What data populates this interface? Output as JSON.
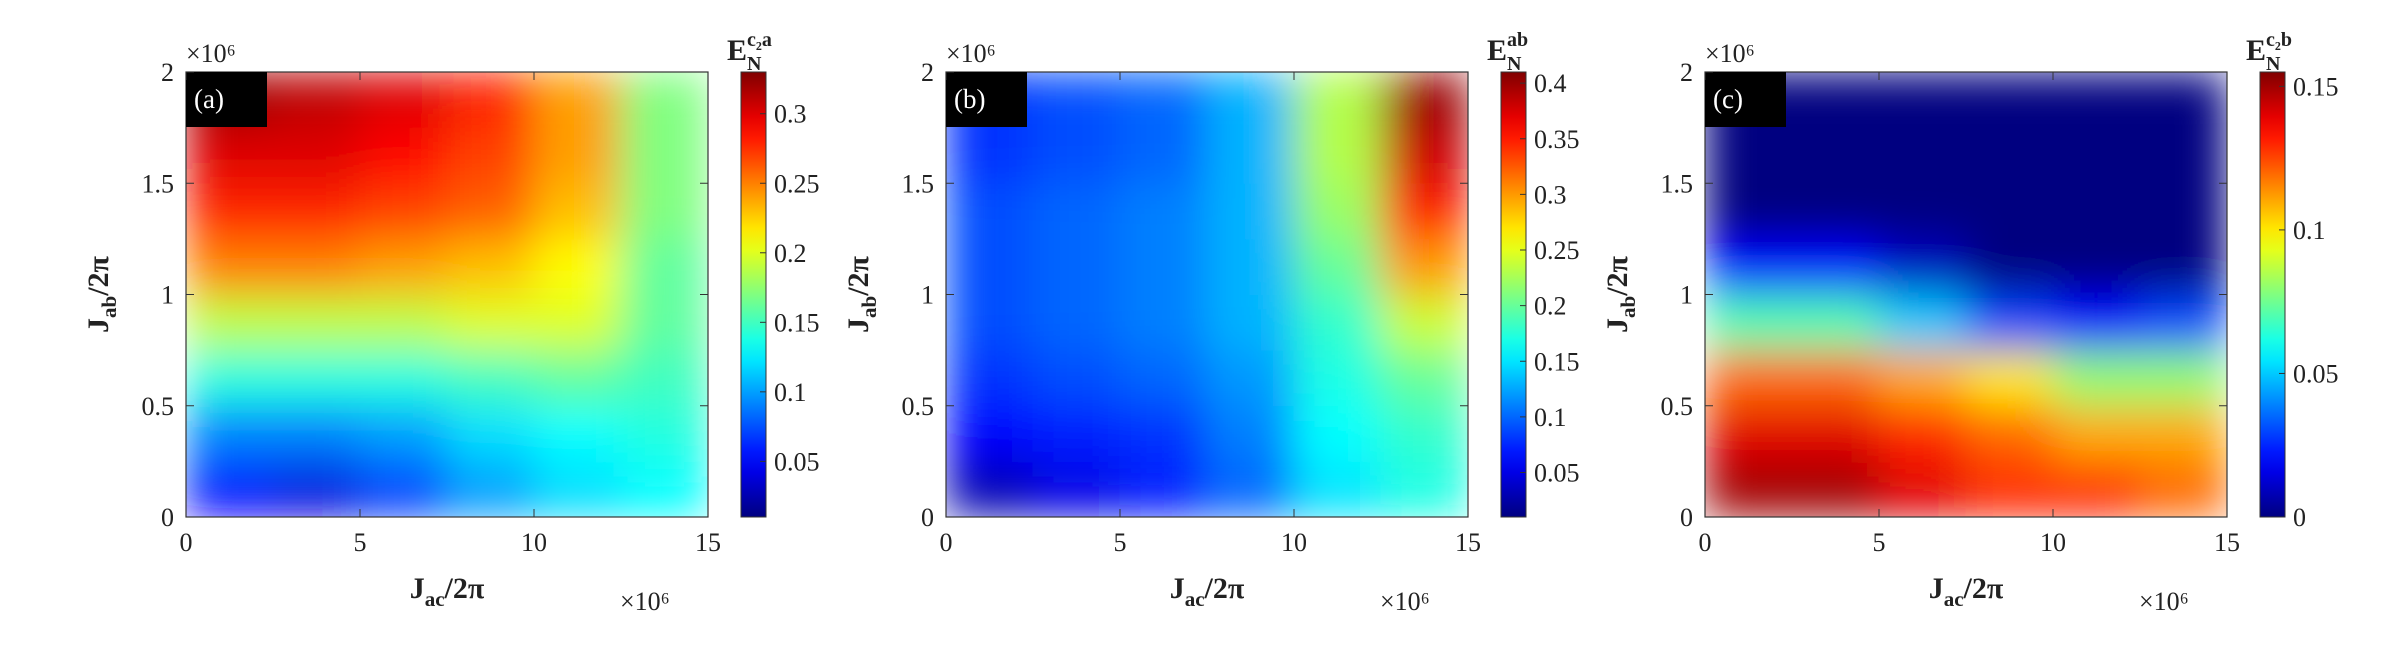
{
  "chart_data": [
    {
      "type": "heatmap",
      "panel_label": "(a)",
      "colormap": "jet",
      "x": [
        1.25,
        3.75,
        6.25,
        8.75,
        11.25,
        13.75
      ],
      "y": [
        0.125,
        0.375,
        0.625,
        0.875,
        1.125,
        1.375,
        1.625,
        1.875
      ],
      "z": [
        [
          0.05,
          0.04,
          0.07,
          0.1,
          0.12,
          0.13
        ],
        [
          0.09,
          0.09,
          0.1,
          0.12,
          0.13,
          0.14
        ],
        [
          0.14,
          0.14,
          0.14,
          0.15,
          0.16,
          0.15
        ],
        [
          0.19,
          0.19,
          0.19,
          0.2,
          0.2,
          0.16
        ],
        [
          0.25,
          0.25,
          0.24,
          0.23,
          0.21,
          0.16
        ],
        [
          0.28,
          0.28,
          0.27,
          0.26,
          0.23,
          0.17
        ],
        [
          0.3,
          0.3,
          0.29,
          0.27,
          0.24,
          0.17
        ],
        [
          0.32,
          0.31,
          0.3,
          0.28,
          0.24,
          0.17
        ]
      ],
      "xlim": [
        0,
        15
      ],
      "ylim": [
        0,
        2
      ],
      "xticks": [
        0,
        5,
        10,
        15
      ],
      "yticks": [
        0,
        0.5,
        1,
        1.5,
        2
      ],
      "x_exponent": "×10⁶",
      "y_exponent": "×10⁶",
      "xlabel": {
        "symbol": "J",
        "subscript": "ac",
        "suffix": "/2π"
      },
      "ylabel": {
        "symbol": "J",
        "subscript": "ab",
        "suffix": "/2π"
      },
      "colorbar": {
        "label": {
          "symbol": "E",
          "subscript": "N",
          "superscript": "c₂a"
        },
        "clim": [
          0.01,
          0.33
        ],
        "ticks": [
          0.05,
          0.1,
          0.15,
          0.2,
          0.25,
          0.3
        ]
      }
    },
    {
      "type": "heatmap",
      "panel_label": "(b)",
      "colormap": "jet",
      "x": [
        1.25,
        3.75,
        6.25,
        8.75,
        11.25,
        13.75
      ],
      "y": [
        0.125,
        0.375,
        0.625,
        0.875,
        1.125,
        1.375,
        1.625,
        1.875
      ],
      "z": [
        [
          0.03,
          0.05,
          0.07,
          0.1,
          0.15,
          0.17
        ],
        [
          0.06,
          0.07,
          0.08,
          0.11,
          0.16,
          0.18
        ],
        [
          0.08,
          0.09,
          0.1,
          0.12,
          0.17,
          0.2
        ],
        [
          0.09,
          0.1,
          0.11,
          0.13,
          0.18,
          0.24
        ],
        [
          0.09,
          0.1,
          0.11,
          0.13,
          0.2,
          0.3
        ],
        [
          0.09,
          0.1,
          0.11,
          0.13,
          0.22,
          0.35
        ],
        [
          0.08,
          0.09,
          0.1,
          0.13,
          0.23,
          0.38
        ],
        [
          0.08,
          0.09,
          0.1,
          0.13,
          0.23,
          0.4
        ]
      ],
      "xlim": [
        0,
        15
      ],
      "ylim": [
        0,
        2
      ],
      "xticks": [
        0,
        5,
        10,
        15
      ],
      "yticks": [
        0,
        0.5,
        1,
        1.5,
        2
      ],
      "x_exponent": "×10⁶",
      "y_exponent": "×10⁶",
      "xlabel": {
        "symbol": "J",
        "subscript": "ac",
        "suffix": "/2π"
      },
      "ylabel": {
        "symbol": "J",
        "subscript": "ab",
        "suffix": "/2π"
      },
      "colorbar": {
        "label": {
          "symbol": "E",
          "subscript": "N",
          "superscript": "ab"
        },
        "clim": [
          0.01,
          0.41
        ],
        "ticks": [
          0.05,
          0.1,
          0.15,
          0.2,
          0.25,
          0.3,
          0.35,
          0.4
        ]
      }
    },
    {
      "type": "heatmap",
      "panel_label": "(c)",
      "colormap": "jet",
      "x": [
        1.25,
        3.75,
        6.25,
        8.75,
        11.25,
        13.75
      ],
      "y": [
        0.125,
        0.375,
        0.625,
        0.875,
        1.125,
        1.375,
        1.625,
        1.875
      ],
      "z": [
        [
          0.15,
          0.15,
          0.14,
          0.13,
          0.13,
          0.12
        ],
        [
          0.14,
          0.14,
          0.13,
          0.12,
          0.11,
          0.11
        ],
        [
          0.12,
          0.12,
          0.11,
          0.1,
          0.08,
          0.08
        ],
        [
          0.07,
          0.07,
          0.05,
          0.03,
          0.02,
          0.03
        ],
        [
          0.02,
          0.02,
          0.01,
          0,
          0,
          0
        ],
        [
          0,
          0,
          0,
          0,
          0,
          0
        ],
        [
          0,
          0,
          0,
          0,
          0,
          0
        ],
        [
          0,
          0,
          0,
          0,
          0,
          0
        ]
      ],
      "xlim": [
        0,
        15
      ],
      "ylim": [
        0,
        2
      ],
      "xticks": [
        0,
        5,
        10,
        15
      ],
      "yticks": [
        0,
        0.5,
        1,
        1.5,
        2
      ],
      "x_exponent": "×10⁶",
      "y_exponent": "×10⁶",
      "xlabel": {
        "symbol": "J",
        "subscript": "ac",
        "suffix": "/2π"
      },
      "ylabel": {
        "symbol": "J",
        "subscript": "ab",
        "suffix": "/2π"
      },
      "colorbar": {
        "label": {
          "symbol": "E",
          "subscript": "N",
          "superscript": "c₂b"
        },
        "clim": [
          0,
          0.155
        ],
        "ticks": [
          0,
          0.05,
          0.1,
          0.15
        ]
      }
    }
  ]
}
